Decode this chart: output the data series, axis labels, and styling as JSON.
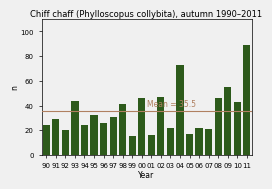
{
  "title": "Chiff chaff (Phylloscopus collybita), autumn 1990–2011",
  "xlabel": "Year",
  "ylabel": "n",
  "years": [
    "90",
    "91",
    "92",
    "93",
    "94",
    "95",
    "96",
    "97",
    "98",
    "99",
    "00",
    "01",
    "02",
    "03",
    "04",
    "05",
    "06",
    "07",
    "08",
    "09",
    "10",
    "11"
  ],
  "values": [
    24,
    29,
    20,
    44,
    24,
    32,
    26,
    31,
    41,
    15,
    46,
    16,
    47,
    22,
    73,
    17,
    22,
    21,
    46,
    55,
    43,
    89
  ],
  "bar_color": "#2d5a1b",
  "mean": 35.5,
  "mean_color": "#b08060",
  "mean_label": "Mean = 35.5",
  "ylim": [
    0,
    110
  ],
  "yticks": [
    0,
    20,
    40,
    60,
    80,
    100
  ],
  "bg_color": "#f0f0f0",
  "title_fontsize": 6.0,
  "axis_label_fontsize": 5.5,
  "tick_fontsize": 5.0,
  "legend_fontsize": 5.5
}
